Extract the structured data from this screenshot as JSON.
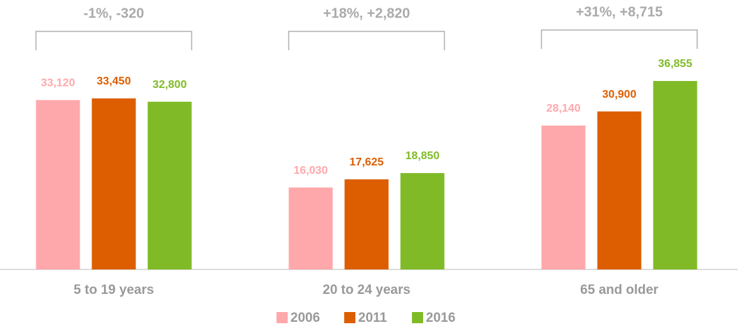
{
  "chart_data": {
    "type": "bar",
    "categories": [
      "5 to 19 years",
      "20 to 24 years",
      "65 and older"
    ],
    "series": [
      {
        "name": "2006",
        "color": "#ffa8ab",
        "values": [
          33120,
          16030,
          28140
        ],
        "value_labels": [
          "33,120",
          "16,030",
          "28,140"
        ]
      },
      {
        "name": "2011",
        "color": "#dc5e00",
        "values": [
          33450,
          17625,
          30900
        ],
        "value_labels": [
          "33,450",
          "17,625",
          "30,900"
        ]
      },
      {
        "name": "2016",
        "color": "#80bb27",
        "values": [
          32800,
          18850,
          36855
        ],
        "value_labels": [
          "32,800",
          "18,850",
          "36,855"
        ]
      }
    ],
    "annotations": [
      "-1%, -320",
      "+18%, +2,820",
      "+31%, +8,715"
    ],
    "legend": "bottom"
  }
}
